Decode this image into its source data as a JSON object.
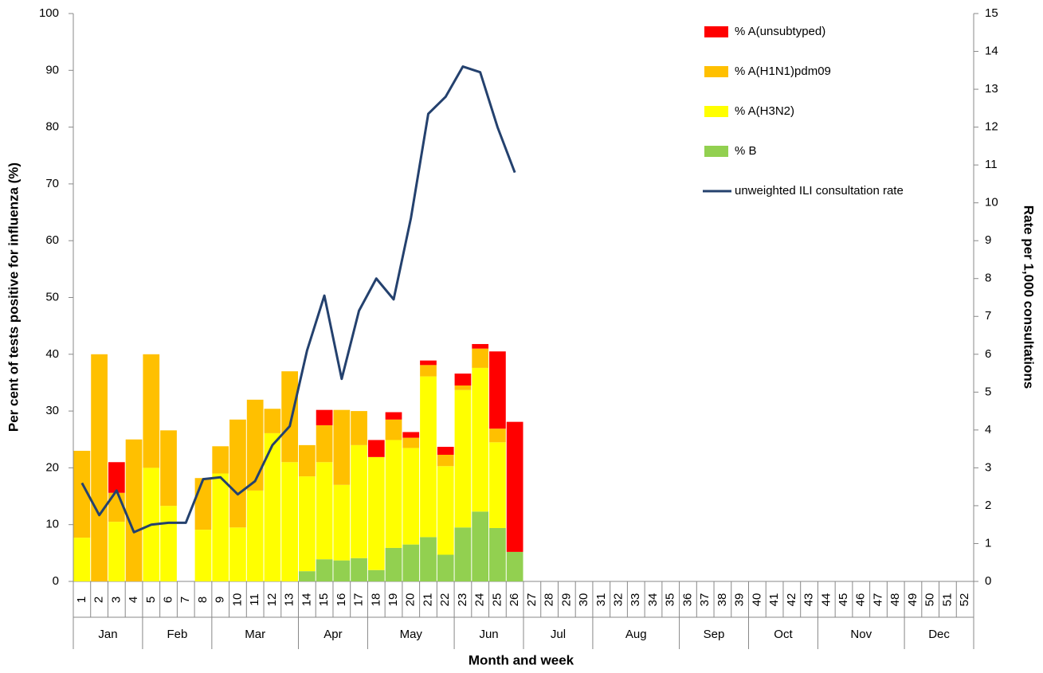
{
  "chart_data": {
    "type": "bar-line",
    "x_title": "Month and week",
    "y_title": "Per cent of tests positive for influenza (%)",
    "y2_title": "Rate per 1,000 consultations",
    "categories": [
      "1",
      "2",
      "3",
      "4",
      "5",
      "6",
      "7",
      "8",
      "9",
      "10",
      "11",
      "12",
      "13",
      "14",
      "15",
      "16",
      "17",
      "18",
      "19",
      "20",
      "21",
      "22",
      "23",
      "24",
      "25",
      "26",
      "27",
      "28",
      "29",
      "30",
      "31",
      "32",
      "33",
      "34",
      "35",
      "36",
      "37",
      "38",
      "39",
      "40",
      "41",
      "42",
      "43",
      "44",
      "45",
      "46",
      "47",
      "48",
      "49",
      "50",
      "51",
      "52"
    ],
    "category_groups": [
      "Jan",
      null,
      null,
      null,
      "Feb",
      null,
      null,
      null,
      "Mar",
      null,
      null,
      null,
      null,
      "Apr",
      null,
      null,
      null,
      "May",
      null,
      null,
      null,
      null,
      "Jun",
      null,
      null,
      null,
      "Jul",
      null,
      null,
      null,
      "Aug",
      null,
      null,
      null,
      null,
      "Sep",
      null,
      null,
      null,
      "Oct",
      null,
      null,
      null,
      "Nov",
      null,
      null,
      null,
      null,
      "Dec",
      null,
      null,
      null
    ],
    "series": [
      {
        "name": "% B",
        "color": "#92d050",
        "values": [
          0,
          0,
          0,
          0,
          0,
          0,
          0,
          0,
          0,
          0,
          0,
          0,
          0,
          1.8,
          3.9,
          3.7,
          4.1,
          2,
          5.9,
          6.5,
          7.8,
          4.7,
          9.5,
          12.3,
          9.4,
          5.2,
          null,
          null,
          null,
          null,
          null,
          null,
          null,
          null,
          null,
          null,
          null,
          null,
          null,
          null,
          null,
          null,
          null,
          null,
          null,
          null,
          null,
          null,
          null,
          null,
          null,
          null
        ]
      },
      {
        "name": "% A(H3N2)",
        "color": "#ffff00",
        "values": [
          7.7,
          0,
          10.5,
          0,
          20,
          13.3,
          0,
          9.1,
          19,
          9.5,
          16,
          26.1,
          21,
          16.7,
          17.1,
          13.3,
          19.9,
          19.9,
          19,
          17,
          28.3,
          15.6,
          24.2,
          25.3,
          15.1,
          0,
          null,
          null,
          null,
          null,
          null,
          null,
          null,
          null,
          null,
          null,
          null,
          null,
          null,
          null,
          null,
          null,
          null,
          null,
          null,
          null,
          null,
          null,
          null,
          null,
          null,
          null
        ]
      },
      {
        "name": "% A(H1N1)pdm09",
        "color": "#ffc000",
        "values": [
          15.3,
          40,
          5.1,
          25,
          20,
          13.3,
          0,
          9.1,
          4.8,
          19,
          16,
          4.3,
          16,
          5.5,
          6.5,
          13.2,
          6,
          0,
          3.6,
          1.8,
          2,
          2,
          0.8,
          3.4,
          2.4,
          0,
          null,
          null,
          null,
          null,
          null,
          null,
          null,
          null,
          null,
          null,
          null,
          null,
          null,
          null,
          null,
          null,
          null,
          null,
          null,
          null,
          null,
          null,
          null,
          null,
          null,
          null
        ]
      },
      {
        "name": "% A(unsubtyped)",
        "color": "#ff0000",
        "values": [
          0,
          0,
          5.4,
          0,
          0,
          0,
          0,
          0,
          0,
          0,
          0,
          0,
          0,
          0,
          2.7,
          0,
          0,
          3,
          1.3,
          1,
          0.8,
          1.4,
          2.1,
          0.8,
          13.6,
          22.9,
          null,
          null,
          null,
          null,
          null,
          null,
          null,
          null,
          null,
          null,
          null,
          null,
          null,
          null,
          null,
          null,
          null,
          null,
          null,
          null,
          null,
          null,
          null,
          null,
          null,
          null
        ]
      },
      {
        "name": "unweighted ILI consultation rate",
        "color": "#24416e",
        "axis": "y2",
        "values": [
          2.6,
          1.75,
          2.4,
          1.3,
          1.5,
          1.55,
          1.55,
          2.7,
          2.75,
          2.3,
          2.65,
          3.6,
          4.1,
          6.1,
          7.55,
          5.35,
          7.15,
          8,
          7.45,
          9.6,
          12.35,
          12.8,
          13.6,
          13.45,
          12,
          10.8,
          null,
          null,
          null,
          null,
          null,
          null,
          null,
          null,
          null,
          null,
          null,
          null,
          null,
          null,
          null,
          null,
          null,
          null,
          null,
          null,
          null,
          null,
          null,
          null,
          null,
          null
        ]
      }
    ],
    "ylim": [
      0,
      100
    ],
    "yticks": [
      0,
      10,
      20,
      30,
      40,
      50,
      60,
      70,
      80,
      90,
      100
    ],
    "y2lim": [
      0,
      15
    ],
    "y2ticks": [
      0,
      1,
      2,
      3,
      4,
      5,
      6,
      7,
      8,
      9,
      10,
      11,
      12,
      13,
      14,
      15
    ],
    "legend": "top-right"
  }
}
